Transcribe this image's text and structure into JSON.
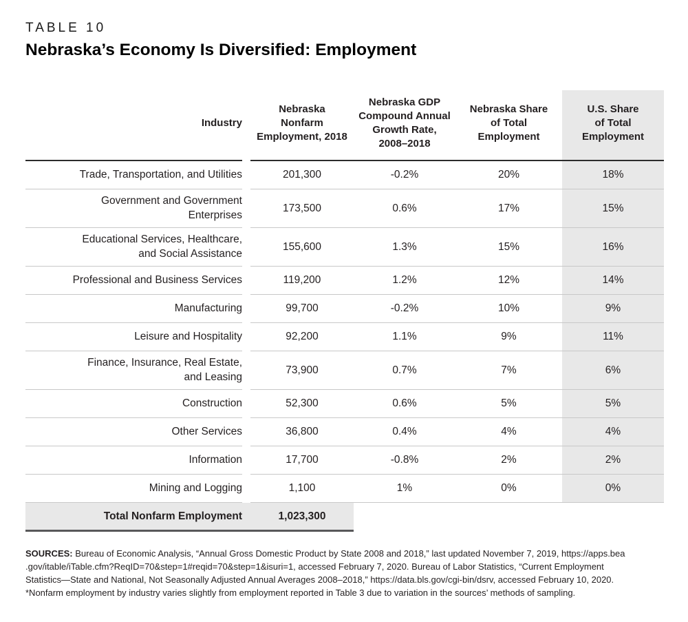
{
  "table_label": "TABLE 10",
  "title": "Nebraska’s Economy Is Diversified: Employment",
  "columns": {
    "industry": "Industry",
    "employment": "Nebraska\nNonfarm\nEmployment, 2018",
    "cagr": "Nebraska GDP\nCompound Annual\nGrowth Rate,\n2008–2018",
    "ne_share": "Nebraska Share\nof Total\nEmployment",
    "us_share": "U.S. Share\nof Total\nEmployment"
  },
  "rows": [
    {
      "industry": "Trade, Transportation, and Utilities",
      "employment": "201,300",
      "cagr": "-0.2%",
      "ne_share": "20%",
      "us_share": "18%"
    },
    {
      "industry": "Government and Government\nEnterprises",
      "employment": "173,500",
      "cagr": "0.6%",
      "ne_share": "17%",
      "us_share": "15%"
    },
    {
      "industry": "Educational Services, Healthcare,\nand Social Assistance",
      "employment": "155,600",
      "cagr": "1.3%",
      "ne_share": "15%",
      "us_share": "16%"
    },
    {
      "industry": "Professional and Business Services",
      "employment": "119,200",
      "cagr": "1.2%",
      "ne_share": "12%",
      "us_share": "14%"
    },
    {
      "industry": "Manufacturing",
      "employment": "99,700",
      "cagr": "-0.2%",
      "ne_share": "10%",
      "us_share": "9%"
    },
    {
      "industry": "Leisure and Hospitality",
      "employment": "92,200",
      "cagr": "1.1%",
      "ne_share": "9%",
      "us_share": "11%"
    },
    {
      "industry": "Finance, Insurance, Real Estate,\nand Leasing",
      "employment": "73,900",
      "cagr": "0.7%",
      "ne_share": "7%",
      "us_share": "6%"
    },
    {
      "industry": "Construction",
      "employment": "52,300",
      "cagr": "0.6%",
      "ne_share": "5%",
      "us_share": "5%"
    },
    {
      "industry": "Other Services",
      "employment": "36,800",
      "cagr": "0.4%",
      "ne_share": "4%",
      "us_share": "4%"
    },
    {
      "industry": "Information",
      "employment": "17,700",
      "cagr": "-0.8%",
      "ne_share": "2%",
      "us_share": "2%"
    },
    {
      "industry": "Mining and Logging",
      "employment": "1,100",
      "cagr": "1%",
      "ne_share": "0%",
      "us_share": "0%"
    }
  ],
  "total": {
    "label": "Total Nonfarm Employment",
    "value": "1,023,300"
  },
  "sources": {
    "label": "SOURCES:",
    "text": "Bureau of Economic Analysis, “Annual Gross Domestic Product by State 2008 and 2018,” last updated November 7, 2019, https://apps.bea\n.gov/itable/iTable.cfm?ReqID=70&step=1#reqid=70&step=1&isuri=1, accessed February 7, 2020. Bureau of Labor Statistics, “Current Employment\nStatistics—State and National, Not Seasonally Adjusted Annual Averages 2008–2018,” https://data.bls.gov/cgi-bin/dsrv, accessed February 10, 2020.",
    "footnote": "*Nonfarm employment by industry varies slightly from employment reported in Table 3 due to variation in the sources’ methods of sampling."
  },
  "colors": {
    "shade_gray": "#e8e8e8",
    "row_divider": "#c8c8c8",
    "header_rule": "#2b2b2b",
    "total_rule": "#58585a",
    "text": "#231f20"
  }
}
